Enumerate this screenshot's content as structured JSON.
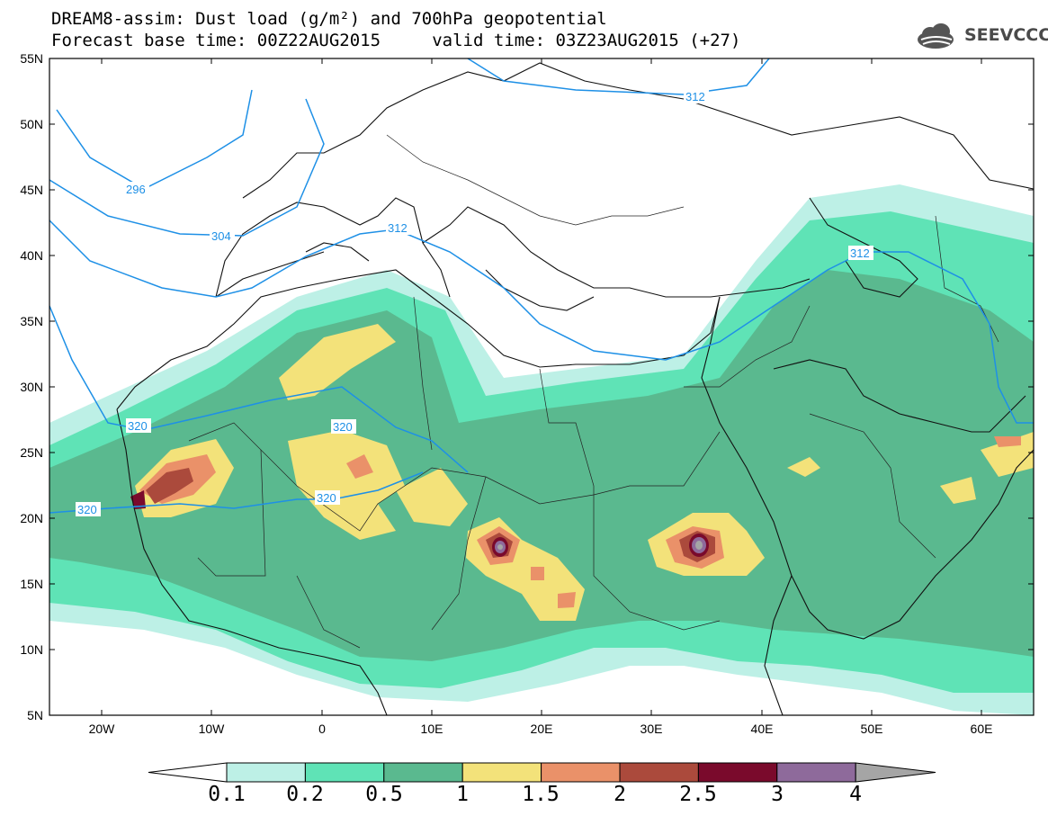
{
  "title": {
    "line1": "DREAM8-assim: Dust load (g/m²) and 700hPa geopotential",
    "line2": "Forecast base time: 00Z22AUG2015     valid time: 03Z23AUG2015 (+27)"
  },
  "logo": {
    "text": "SEEVCCC",
    "icon": "cloud-icon"
  },
  "map": {
    "lon_labels": [
      "20W",
      "10W",
      "0",
      "10E",
      "20E",
      "30E",
      "40E",
      "50E",
      "60E"
    ],
    "lat_labels": [
      "55N",
      "50N",
      "45N",
      "40N",
      "35N",
      "30N",
      "25N",
      "20N",
      "15N",
      "10N",
      "5N"
    ],
    "contour_labels": [
      "296",
      "304",
      "312",
      "312",
      "312",
      "320",
      "320",
      "320",
      "320"
    ]
  },
  "colorbar": {
    "labels": [
      "0.1",
      "0.2",
      "0.5",
      "1",
      "1.5",
      "2",
      "2.5",
      "3",
      "4"
    ],
    "colors": [
      "#ffffff",
      "#bdf0e6",
      "#5fe3b6",
      "#5ab98f",
      "#f3e27a",
      "#ea9169",
      "#ab4a3c",
      "#7a0a2c",
      "#8e6a9b",
      "#a5a5a5"
    ]
  }
}
